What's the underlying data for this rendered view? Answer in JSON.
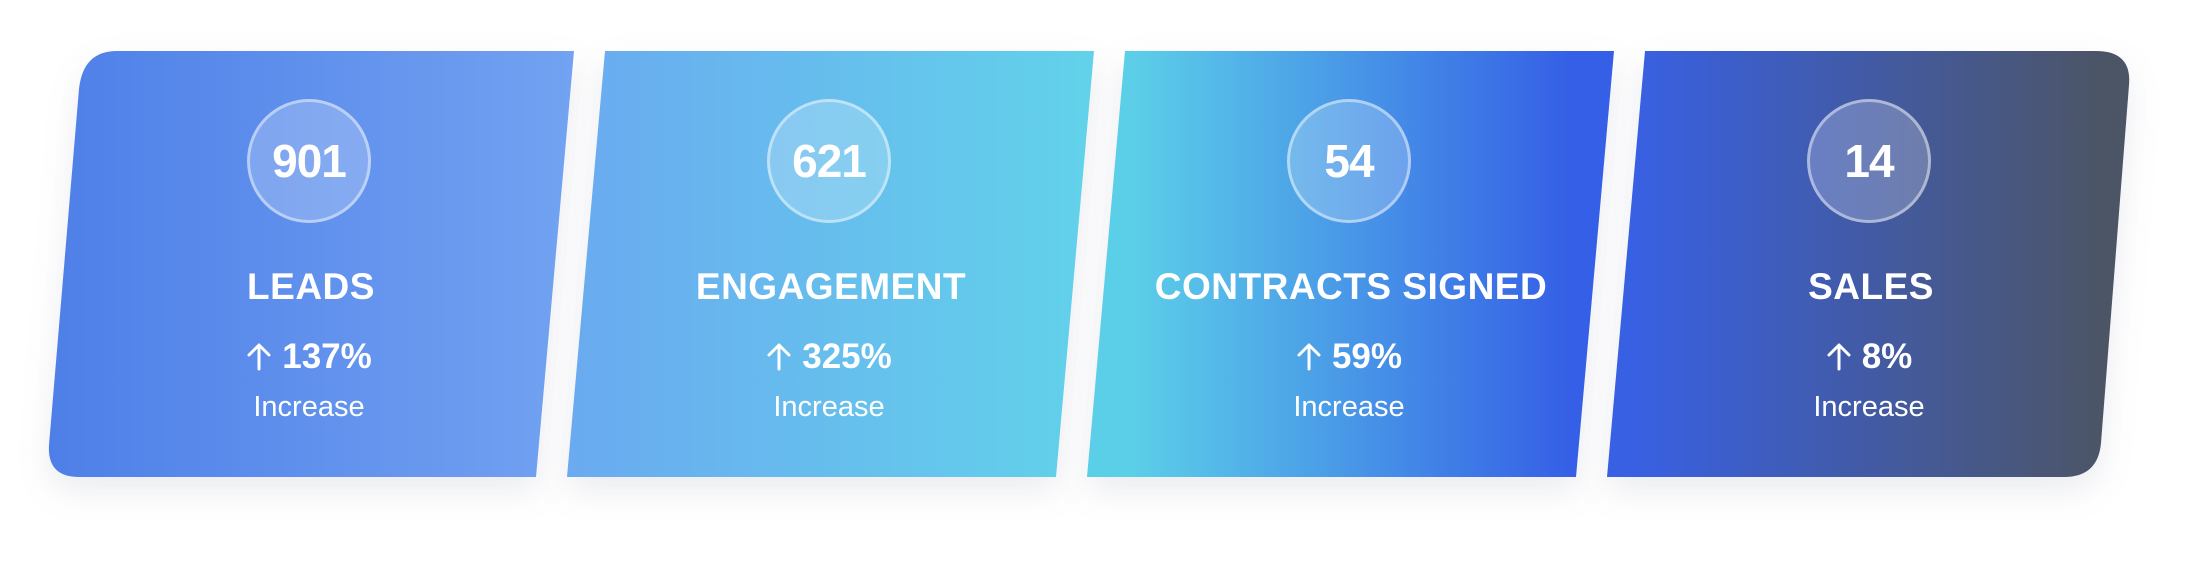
{
  "cards": [
    {
      "count": "901",
      "title": "LEADS",
      "change": "137%",
      "change_label": "Increase",
      "change_icon": "arrow-up-icon",
      "gradient": [
        "#4e7fe8",
        "#72a2f1"
      ]
    },
    {
      "count": "621",
      "title": "ENGAGEMENT",
      "change": "325%",
      "change_label": "Increase",
      "change_icon": "arrow-up-icon",
      "gradient": [
        "#6aaaf0",
        "#62d2ea"
      ]
    },
    {
      "count": "54",
      "title": "CONTRACTS SIGNED",
      "change": "59%",
      "change_label": "Increase",
      "change_icon": "arrow-up-icon",
      "gradient": [
        "#5ccfe8",
        "#355fe6"
      ]
    },
    {
      "count": "14",
      "title": "SALES",
      "change": "8%",
      "change_label": "Increase",
      "change_icon": "arrow-up-icon",
      "gradient": [
        "#3860e3",
        "#4c5566"
      ]
    }
  ]
}
